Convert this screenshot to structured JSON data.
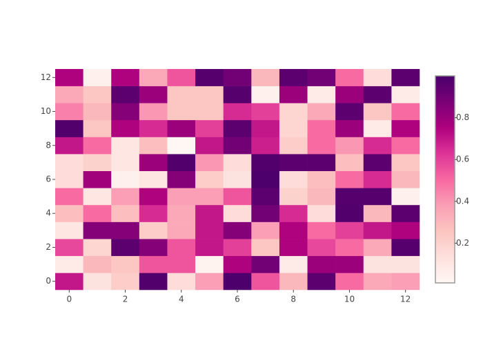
{
  "chart_data": {
    "type": "heatmap",
    "x": [
      0,
      1,
      2,
      3,
      4,
      5,
      6,
      7,
      8,
      9,
      10,
      11,
      12
    ],
    "y": [
      0,
      1,
      2,
      3,
      4,
      5,
      6,
      7,
      8,
      9,
      10,
      11,
      12
    ],
    "z": [
      [
        0.7,
        0.12,
        0.22,
        0.98,
        0.15,
        0.38,
        0.99,
        0.55,
        0.3,
        0.95,
        0.5,
        0.35,
        0.38
      ],
      [
        0.08,
        0.3,
        0.25,
        0.55,
        0.55,
        0.03,
        0.75,
        0.9,
        0.08,
        0.8,
        0.8,
        0.12,
        0.12
      ],
      [
        0.58,
        0.18,
        0.95,
        0.85,
        0.55,
        0.7,
        0.6,
        0.25,
        0.75,
        0.58,
        0.5,
        0.35,
        0.97
      ],
      [
        0.1,
        0.85,
        0.85,
        0.22,
        0.35,
        0.7,
        0.85,
        0.38,
        0.75,
        0.5,
        0.6,
        0.7,
        0.75
      ],
      [
        0.28,
        0.5,
        0.28,
        0.65,
        0.35,
        0.7,
        0.15,
        0.9,
        0.65,
        0.15,
        0.98,
        0.3,
        0.95
      ],
      [
        0.5,
        0.1,
        0.38,
        0.75,
        0.38,
        0.38,
        0.55,
        0.95,
        0.2,
        0.3,
        0.97,
        0.97,
        0.05
      ],
      [
        0.15,
        0.78,
        0.05,
        0.1,
        0.85,
        0.22,
        0.12,
        0.99,
        0.15,
        0.28,
        0.5,
        0.65,
        0.3
      ],
      [
        0.15,
        0.2,
        0.1,
        0.8,
        0.98,
        0.4,
        0.15,
        0.98,
        0.95,
        0.95,
        0.28,
        0.95,
        0.25
      ],
      [
        0.7,
        0.5,
        0.1,
        0.28,
        0.01,
        0.7,
        0.9,
        0.68,
        0.22,
        0.5,
        0.4,
        0.65,
        0.5
      ],
      [
        0.98,
        0.25,
        0.75,
        0.65,
        0.8,
        0.6,
        0.95,
        0.7,
        0.18,
        0.5,
        0.8,
        0.08,
        0.75
      ],
      [
        0.45,
        0.3,
        0.85,
        0.4,
        0.25,
        0.25,
        0.65,
        0.6,
        0.18,
        0.35,
        0.95,
        0.25,
        0.5
      ],
      [
        0.35,
        0.25,
        0.95,
        0.8,
        0.25,
        0.25,
        0.97,
        0.05,
        0.8,
        0.08,
        0.8,
        0.95,
        0.08
      ],
      [
        0.75,
        0.05,
        0.75,
        0.35,
        0.55,
        0.97,
        0.9,
        0.3,
        0.95,
        0.9,
        0.5,
        0.15,
        0.95
      ]
    ],
    "xlim": [
      -0.5,
      12.5
    ],
    "ylim": [
      -0.5,
      12.5
    ],
    "xticks": [
      0,
      2,
      4,
      6,
      8,
      10,
      12
    ],
    "yticks": [
      0,
      2,
      4,
      6,
      8,
      10,
      12
    ],
    "zlim": [
      0.01,
      1.0
    ],
    "colorbar_ticks": [
      0.2,
      0.4,
      0.6,
      0.8
    ],
    "colorscale": [
      [
        0,
        "#fff7f3"
      ],
      [
        0.125,
        "#fde0dd"
      ],
      [
        0.25,
        "#fcc5c0"
      ],
      [
        0.375,
        "#fa9fb5"
      ],
      [
        0.5,
        "#f768a1"
      ],
      [
        0.625,
        "#dd3497"
      ],
      [
        0.75,
        "#ae017e"
      ],
      [
        0.875,
        "#7a0177"
      ],
      [
        1,
        "#49006a"
      ]
    ]
  }
}
